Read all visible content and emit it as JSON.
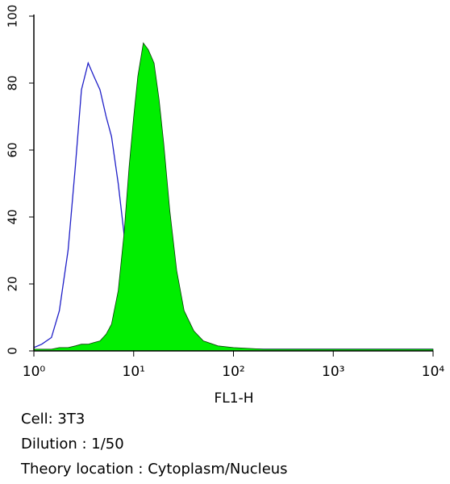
{
  "chart_data": {
    "type": "histogram",
    "xlabel": "FL1-H",
    "xscale": "log",
    "xlim": [
      1,
      10000
    ],
    "ylim": [
      0,
      100
    ],
    "yticks": [
      0,
      20,
      40,
      60,
      80,
      100
    ],
    "xticks": [
      {
        "value": 1,
        "label": "10⁰"
      },
      {
        "value": 10,
        "label": "10¹"
      },
      {
        "value": 100,
        "label": "10²"
      },
      {
        "value": 1000,
        "label": "10³"
      },
      {
        "value": 10000,
        "label": "10⁴"
      }
    ],
    "x": [
      1,
      1.2,
      1.5,
      1.8,
      2.2,
      2.6,
      3,
      3.5,
      4,
      4.6,
      5.3,
      6,
      7,
      8,
      9,
      10,
      11,
      12.5,
      14,
      16,
      18,
      20,
      23,
      27,
      32,
      40,
      50,
      70,
      100,
      200,
      500,
      1000,
      3000,
      10000
    ],
    "series": [
      {
        "color": "#2020c8",
        "fill": false,
        "values": [
          1,
          2,
          4,
          12,
          30,
          55,
          78,
          86,
          82,
          78,
          70,
          64,
          50,
          35,
          20,
          10,
          5,
          3,
          2,
          1,
          1,
          0.5,
          0.5,
          0.5,
          0.5,
          0.5,
          0.5,
          0.5,
          0.5,
          0.5,
          0.5,
          0.5,
          0.5,
          0.5
        ]
      },
      {
        "color": "#00ee00",
        "fill": true,
        "values": [
          0.5,
          0.5,
          0.5,
          1,
          1,
          1.5,
          2,
          2,
          2.5,
          3,
          5,
          8,
          18,
          35,
          55,
          70,
          82,
          92,
          90,
          86,
          75,
          62,
          42,
          24,
          12,
          6,
          3,
          1.5,
          1,
          0.5,
          0.5,
          0.5,
          0.5,
          0.5
        ]
      }
    ],
    "annotations": [
      "Cell: 3T3",
      "Dilution : 1/50",
      "Theory location : Cytoplasm/Nucleus"
    ]
  }
}
